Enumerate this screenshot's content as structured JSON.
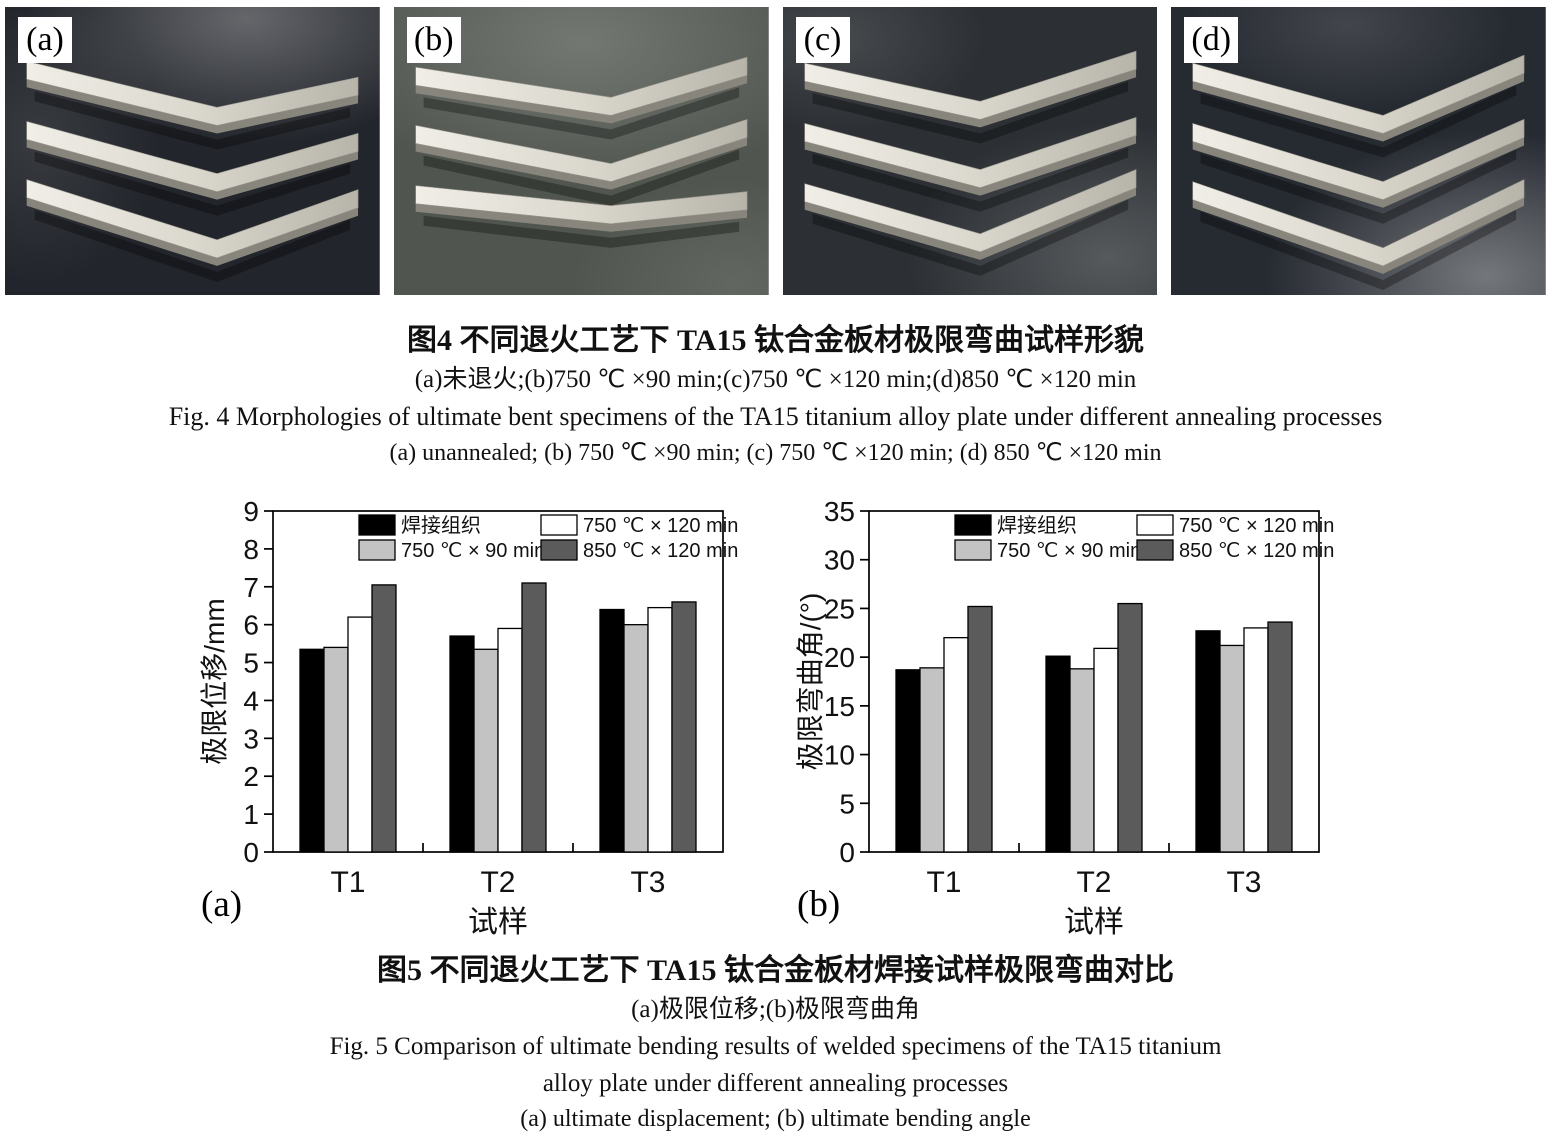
{
  "figure4": {
    "panel_labels": [
      "(a)",
      "(b)",
      "(c)",
      "(d)"
    ],
    "caption": {
      "zh_title": "图4  不同退火工艺下 TA15 钛合金板材极限弯曲试样形貌",
      "zh_note": "(a)未退火;(b)750 ℃ ×90 min;(c)750 ℃ ×120 min;(d)850 ℃ ×120 min",
      "en_title": "Fig. 4   Morphologies of ultimate bent specimens of the TA15 titanium alloy plate under different annealing processes",
      "en_note": "(a) unannealed; (b) 750 ℃ ×90 min; (c) 750 ℃ ×120 min; (d) 850 ℃ ×120 min"
    }
  },
  "figure5": {
    "caption": {
      "zh_title": "图5  不同退火工艺下 TA15 钛合金板材焊接试样极限弯曲对比",
      "zh_note": "(a)极限位移;(b)极限弯曲角",
      "en_line1": "Fig. 5   Comparison of ultimate bending results of welded specimens of the TA15 titanium",
      "en_line2": "alloy plate under different annealing processes",
      "en_note": "(a) ultimate displacement; (b) ultimate bending angle"
    }
  },
  "chart_data": [
    {
      "type": "bar",
      "panel": "(a)",
      "title": "",
      "categories": [
        "T1",
        "T2",
        "T3"
      ],
      "series": [
        {
          "name": "焊接组织",
          "color": "#000000",
          "values": [
            5.35,
            5.7,
            6.4
          ]
        },
        {
          "name": "750 ℃ × 90 min",
          "color": "#c3c3c3",
          "values": [
            5.4,
            5.35,
            6.0
          ]
        },
        {
          "name": "750 ℃ × 120 min",
          "color": "#ffffff",
          "values": [
            6.2,
            5.9,
            6.45
          ]
        },
        {
          "name": "850 ℃ × 120 min",
          "color": "#5b5b5b",
          "values": [
            7.05,
            7.1,
            6.6
          ]
        }
      ],
      "xlabel": "试样",
      "ylabel": "极限位移/mm",
      "ylim": [
        0,
        9
      ],
      "ytick_step": 1,
      "grid": false,
      "legend_position": "top-inside"
    },
    {
      "type": "bar",
      "panel": "(b)",
      "title": "",
      "categories": [
        "T1",
        "T2",
        "T3"
      ],
      "series": [
        {
          "name": "焊接组织",
          "color": "#000000",
          "values": [
            18.7,
            20.1,
            22.7
          ]
        },
        {
          "name": "750 ℃ × 90 min",
          "color": "#c3c3c3",
          "values": [
            18.9,
            18.8,
            21.2
          ]
        },
        {
          "name": "750 ℃ × 120 min",
          "color": "#ffffff",
          "values": [
            22.0,
            20.9,
            23.0
          ]
        },
        {
          "name": "850 ℃ × 120 min",
          "color": "#5b5b5b",
          "values": [
            25.2,
            25.5,
            23.6
          ]
        }
      ],
      "xlabel": "试样",
      "ylabel": "极限弯曲角/(°)",
      "ylim": [
        0,
        35
      ],
      "ytick_step": 5,
      "grid": false,
      "legend_position": "top-inside"
    }
  ]
}
